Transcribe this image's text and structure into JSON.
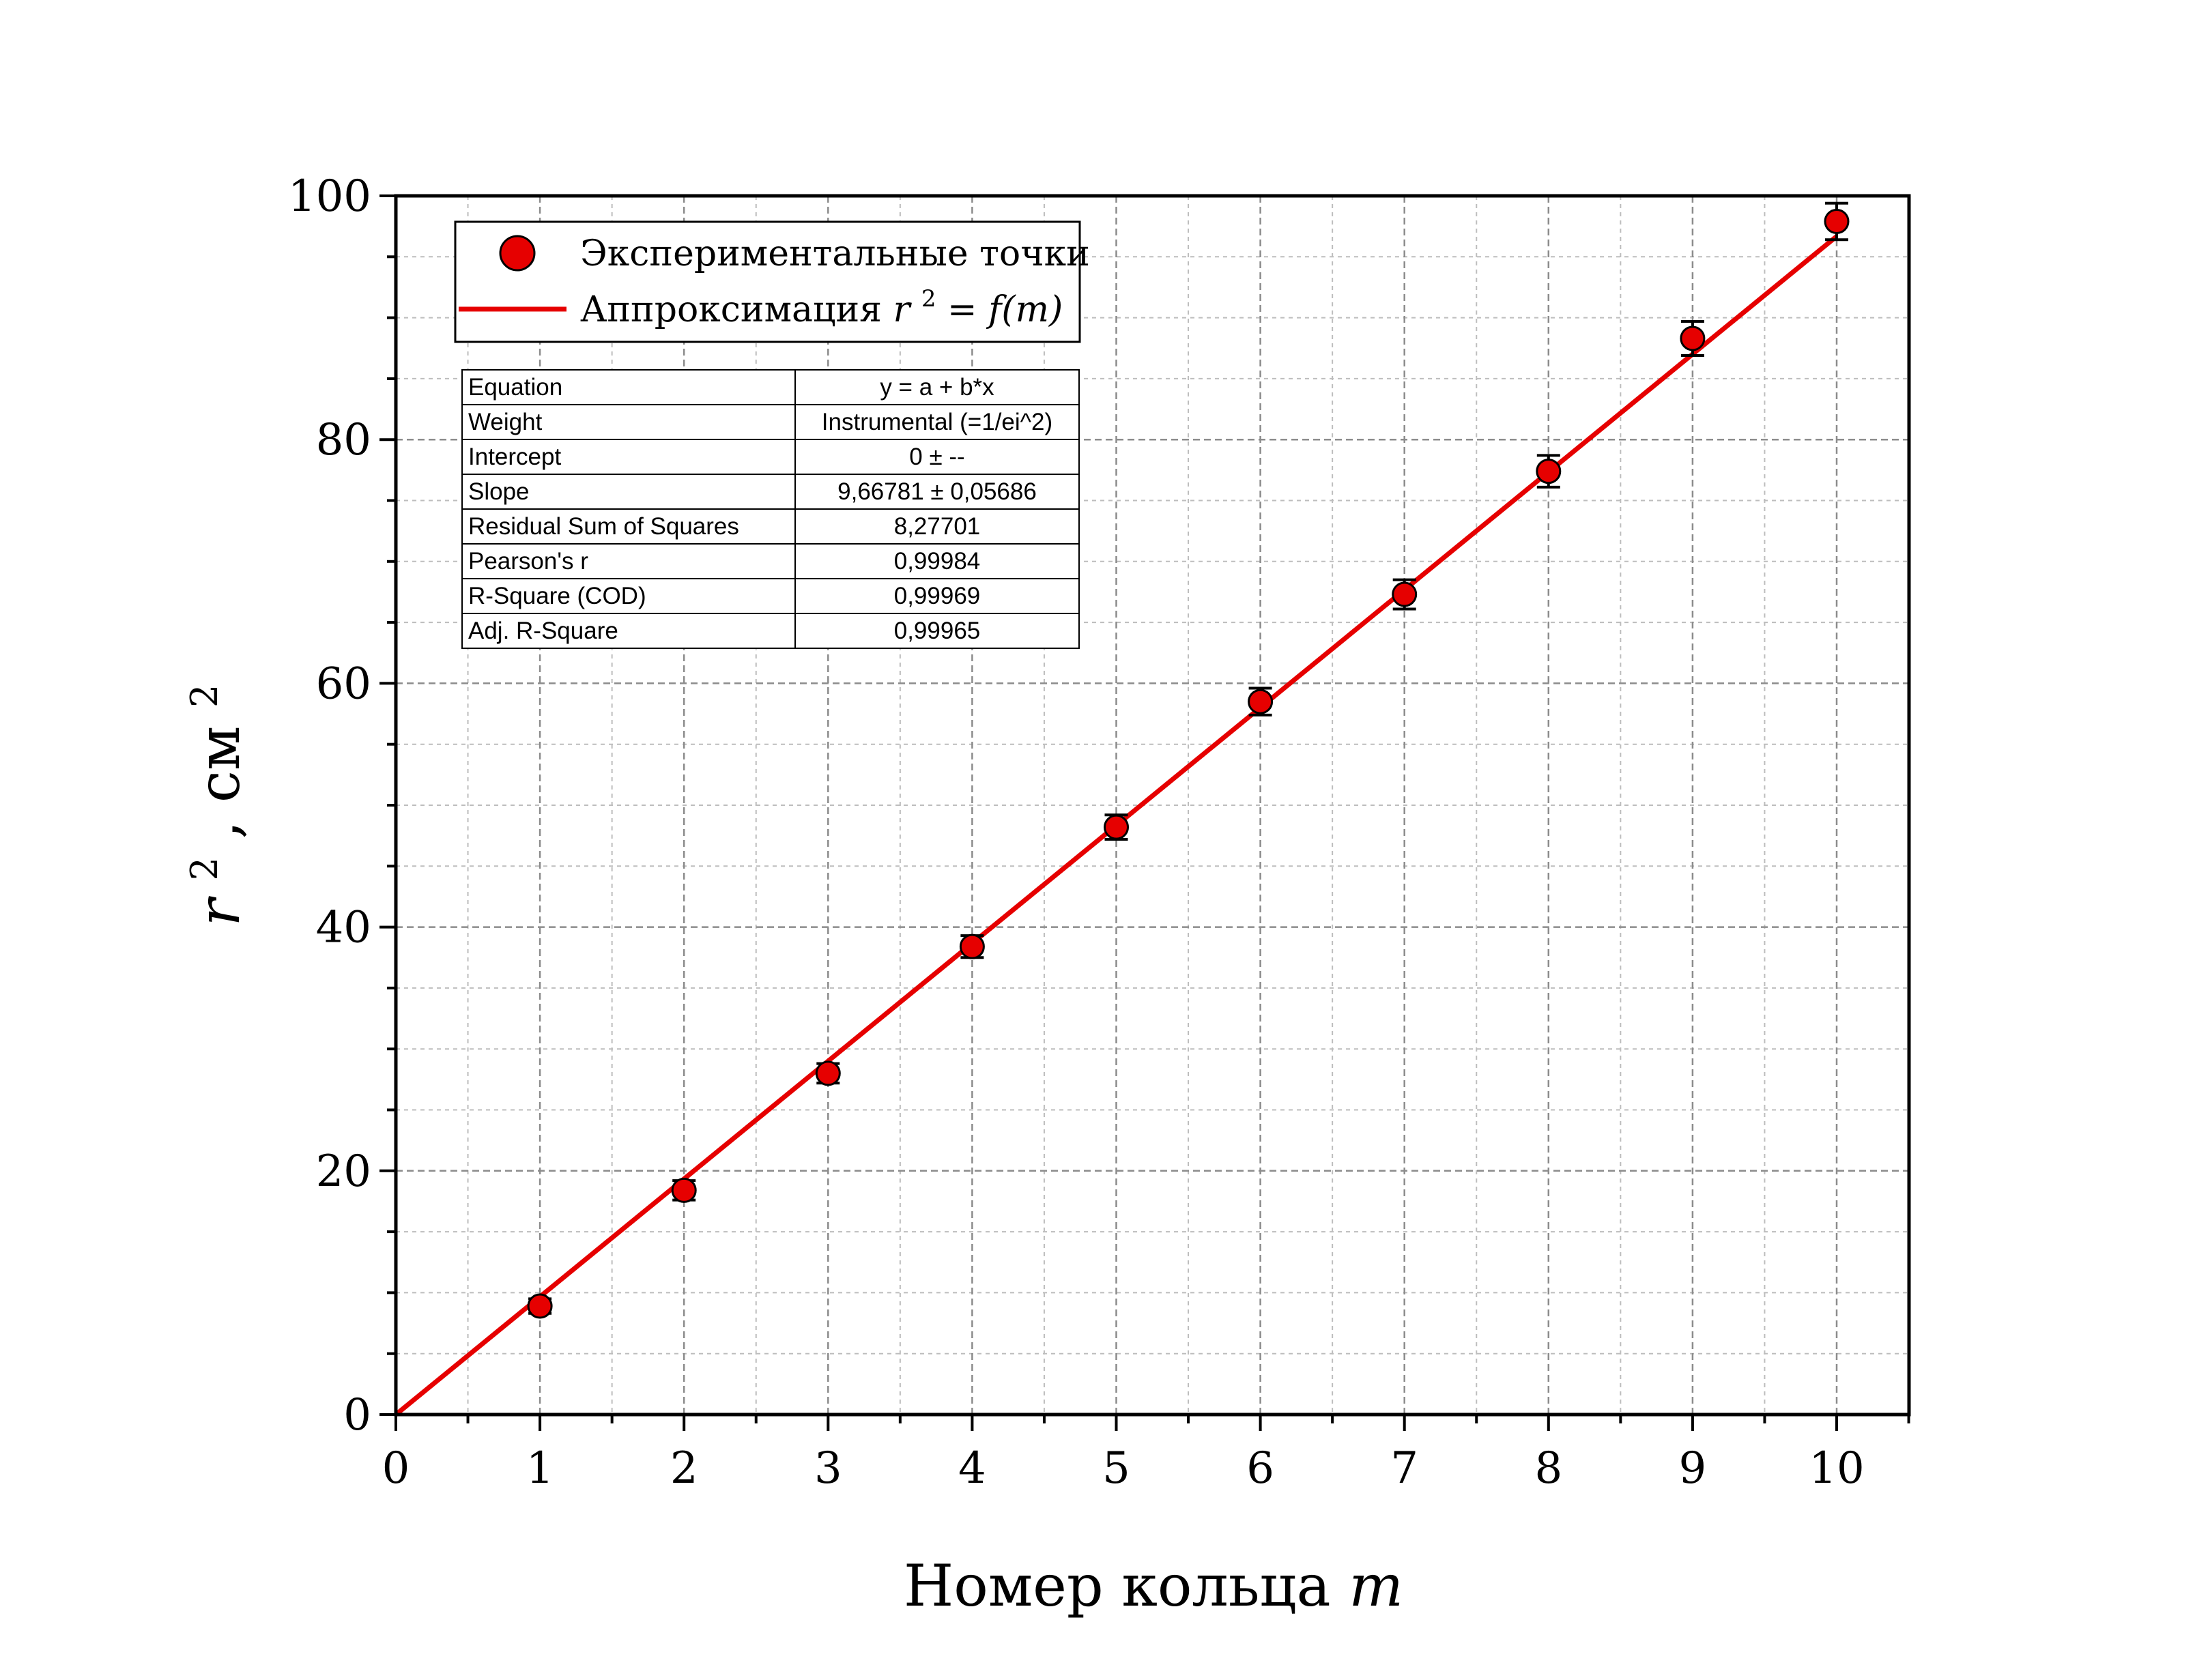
{
  "chart_data": {
    "type": "scatter",
    "xlabel": "Номер кольца",
    "xlabel_var": "m",
    "ylabel_var": "r",
    "ylabel_sup": "2",
    "ylabel_unit": ", см",
    "ylabel_unit_sup": "2",
    "xlim": [
      0,
      10.5
    ],
    "ylim": [
      0,
      100
    ],
    "x_ticks": [
      "0",
      "1",
      "2",
      "3",
      "4",
      "5",
      "6",
      "7",
      "8",
      "9",
      "10"
    ],
    "y_ticks": [
      "0",
      "20",
      "40",
      "60",
      "80",
      "100"
    ],
    "grid": true,
    "legend": {
      "placement": "top-left",
      "points_label": "Экспериментальные точки",
      "fit_label_prefix": "Аппроксимация",
      "fit_label_var": "r",
      "fit_label_sup": "2",
      "fit_label_rhs": " = f(m)"
    },
    "series": [
      {
        "name": "Экспериментальные точки",
        "type": "scatter",
        "color": "#e60000",
        "x": [
          1,
          2,
          3,
          4,
          5,
          6,
          7,
          8,
          9,
          10
        ],
        "y": [
          8.9,
          18.4,
          28.0,
          38.4,
          48.2,
          58.5,
          67.3,
          77.4,
          88.3,
          97.9
        ],
        "err": [
          0.6,
          0.8,
          0.8,
          0.9,
          1.0,
          1.1,
          1.2,
          1.3,
          1.4,
          1.5
        ]
      },
      {
        "name": "Аппроксимация r² = f(m)",
        "type": "line",
        "color": "#e60000",
        "x": [
          0,
          10
        ],
        "y": [
          0,
          96.6781
        ]
      }
    ],
    "fit_table": [
      {
        "key": "Equation",
        "value": "y = a + b*x"
      },
      {
        "key": "Weight",
        "value": "Instrumental (=1/ei^2)"
      },
      {
        "key": "Intercept",
        "value": "0 ± --"
      },
      {
        "key": "Slope",
        "value": "9,66781 ± 0,05686"
      },
      {
        "key": "Residual Sum of Squares",
        "value": "8,27701"
      },
      {
        "key": "Pearson's r",
        "value": "0,99984"
      },
      {
        "key": "R-Square (COD)",
        "value": "0,99969"
      },
      {
        "key": "Adj. R-Square",
        "value": "0,99965"
      }
    ]
  }
}
